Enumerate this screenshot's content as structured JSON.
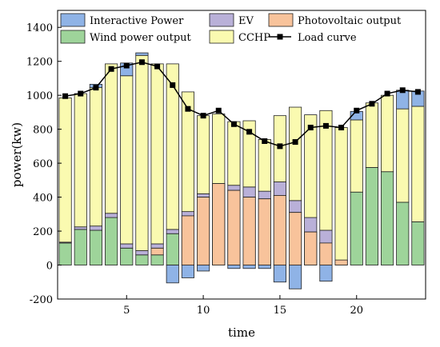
{
  "chart_data": {
    "type": "bar",
    "stacked": true,
    "title": "",
    "xlabel": "time",
    "ylabel": "power(kw)",
    "x": [
      1,
      2,
      3,
      4,
      5,
      6,
      7,
      8,
      9,
      10,
      11,
      12,
      13,
      14,
      15,
      16,
      17,
      18,
      19,
      20,
      21,
      22,
      23,
      24
    ],
    "xlim": [
      0.5,
      24.5
    ],
    "ylim": [
      -200,
      1500
    ],
    "xticks": [
      5,
      10,
      15,
      20
    ],
    "yticks": [
      -200,
      0,
      200,
      400,
      600,
      800,
      1000,
      1200,
      1400
    ],
    "grid": false,
    "legend_position": "top",
    "colors": {
      "Interactive Power": "#8fb3e6",
      "Wind power output": "#9ed49a",
      "EV": "#b9b0d8",
      "CCHP": "#fafab0",
      "Photovoltaic output": "#f8c39b",
      "Load curve": "#000000"
    },
    "series": [
      {
        "name": "Wind power output",
        "values": [
          130,
          210,
          205,
          280,
          100,
          60,
          60,
          185,
          290,
          400,
          480,
          440,
          400,
          390,
          410,
          310,
          195,
          130,
          25,
          430,
          575,
          550,
          370,
          255
        ]
      },
      {
        "name": "Photovoltaic output",
        "values": [
          0,
          0,
          0,
          0,
          0,
          0,
          40,
          0,
          0,
          0,
          0,
          0,
          0,
          0,
          0,
          0,
          0,
          0,
          0,
          0,
          0,
          0,
          0,
          0
        ]
      },
      {
        "name": "EV",
        "values": [
          5,
          15,
          25,
          25,
          25,
          25,
          25,
          25,
          25,
          20,
          0,
          30,
          60,
          45,
          80,
          70,
          85,
          75,
          0,
          0,
          0,
          0,
          0,
          0
        ]
      },
      {
        "name": "CCHP",
        "values": [
          850,
          785,
          815,
          880,
          990,
          1150,
          1060,
          975,
          705,
          460,
          410,
          375,
          390,
          305,
          390,
          550,
          605,
          705,
          785,
          425,
          380,
          450,
          550,
          680
        ]
      },
      {
        "name": "Interactive Power",
        "values": [
          0,
          0,
          20,
          0,
          75,
          15,
          0,
          -105,
          -75,
          -35,
          0,
          -20,
          -20,
          -20,
          -100,
          -140,
          0,
          -95,
          0,
          50,
          0,
          0,
          110,
          90
        ]
      }
    ],
    "overlay_stack_top": [
      {
        "name": "Photovoltaic output",
        "values": [
          0,
          0,
          0,
          0,
          0,
          0,
          0,
          0,
          290,
          400,
          480,
          440,
          400,
          390,
          410,
          310,
          195,
          130,
          30,
          0,
          0,
          0,
          0,
          0
        ]
      }
    ],
    "line_series": [
      {
        "name": "Load curve",
        "values": [
          995,
          1010,
          1045,
          1155,
          1175,
          1195,
          1170,
          1060,
          920,
          880,
          910,
          830,
          785,
          730,
          700,
          725,
          810,
          820,
          810,
          910,
          950,
          1010,
          1030,
          1020
        ]
      }
    ]
  }
}
